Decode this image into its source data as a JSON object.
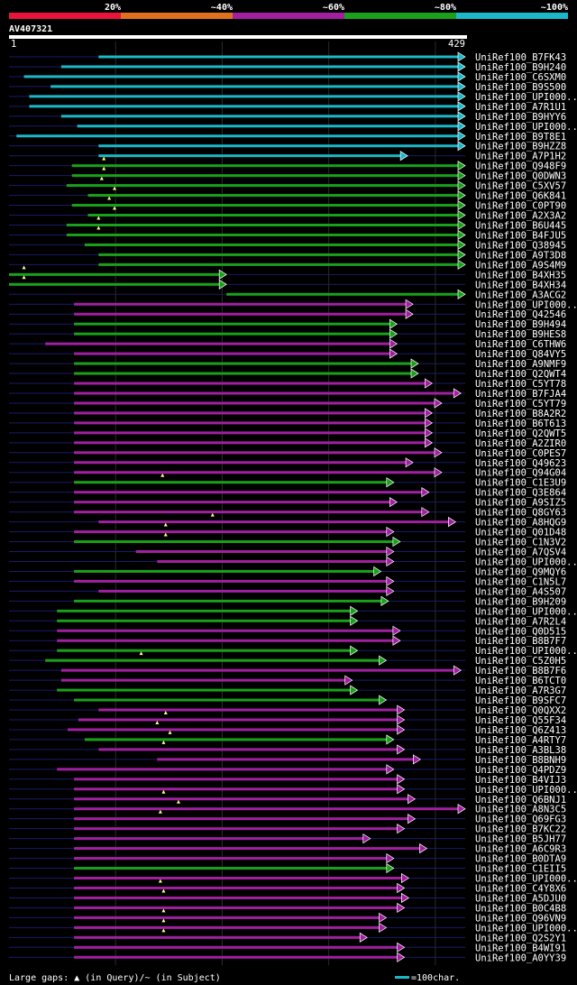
{
  "legend": {
    "bands": [
      {
        "label": "20%",
        "color": "#e8143c"
      },
      {
        "label": "~40%",
        "color": "#e0701e"
      },
      {
        "label": "~60%",
        "color": "#a020a0"
      },
      {
        "label": "~80%",
        "color": "#1aa01a"
      },
      {
        "label": "~100%",
        "color": "#1ab8c8"
      }
    ]
  },
  "query": {
    "name": "AV407321",
    "start_label": "1",
    "end_label": "429"
  },
  "footer": {
    "gap_text": "Large gaps: ▲ (in Query)/~ (in Subject)",
    "scale_text": "=100char."
  },
  "chart_data": {
    "type": "alignment",
    "query_length": 429,
    "identity_colors": {
      "~100%": "#1ab8c8",
      "~80%": "#1aa01a",
      "~60%": "#a020a0",
      "~40%": "#e0701e",
      "20%": "#e8143c"
    },
    "hits": [
      {
        "name": "UniRef100_B7FK43",
        "start": 85,
        "end": 429,
        "identity": "~100%",
        "qgap": null
      },
      {
        "name": "UniRef100_B9H240",
        "start": 50,
        "end": 429,
        "identity": "~100%",
        "qgap": null
      },
      {
        "name": "UniRef100_C6SXM0",
        "start": 15,
        "end": 429,
        "identity": "~100%",
        "qgap": null
      },
      {
        "name": "UniRef100_B9S500",
        "start": 40,
        "end": 429,
        "identity": "~100%",
        "qgap": null
      },
      {
        "name": "UniRef100_UPI000..",
        "start": 20,
        "end": 429,
        "identity": "~100%",
        "qgap": null
      },
      {
        "name": "UniRef100_A7R1U1",
        "start": 20,
        "end": 429,
        "identity": "~100%",
        "qgap": null
      },
      {
        "name": "UniRef100_B9HYY6",
        "start": 50,
        "end": 429,
        "identity": "~100%",
        "qgap": null
      },
      {
        "name": "UniRef100_UPI000..",
        "start": 65,
        "end": 429,
        "identity": "~100%",
        "qgap": null
      },
      {
        "name": "UniRef100_B9T8E1",
        "start": 8,
        "end": 429,
        "identity": "~100%",
        "qgap": null
      },
      {
        "name": "UniRef100_B9HZZ8",
        "start": 85,
        "end": 429,
        "identity": "~100%",
        "qgap": null
      },
      {
        "name": "UniRef100_A7P1H2",
        "start": 85,
        "end": 375,
        "identity": "~100%",
        "qgap": null
      },
      {
        "name": "UniRef100_Q948F9",
        "start": 60,
        "end": 429,
        "identity": "~80%",
        "qgap": 90
      },
      {
        "name": "UniRef100_Q0DWN3",
        "start": 60,
        "end": 429,
        "identity": "~80%",
        "qgap": 90
      },
      {
        "name": "UniRef100_C5XV57",
        "start": 55,
        "end": 429,
        "identity": "~80%",
        "qgap": 88
      },
      {
        "name": "UniRef100_Q6K841",
        "start": 75,
        "end": 429,
        "identity": "~80%",
        "qgap": 100
      },
      {
        "name": "UniRef100_C0PT90",
        "start": 60,
        "end": 429,
        "identity": "~80%",
        "qgap": 95
      },
      {
        "name": "UniRef100_A2X3A2",
        "start": 75,
        "end": 429,
        "identity": "~80%",
        "qgap": 100
      },
      {
        "name": "UniRef100_B6U445",
        "start": 55,
        "end": 429,
        "identity": "~80%",
        "qgap": 85
      },
      {
        "name": "UniRef100_B4FJU5",
        "start": 55,
        "end": 429,
        "identity": "~80%",
        "qgap": 85
      },
      {
        "name": "UniRef100_Q38945",
        "start": 72,
        "end": 429,
        "identity": "~80%",
        "qgap": null
      },
      {
        "name": "UniRef100_A9T3D8",
        "start": 85,
        "end": 429,
        "identity": "~80%",
        "qgap": null
      },
      {
        "name": "UniRef100_A9S4M9",
        "start": 85,
        "end": 429,
        "identity": "~80%",
        "qgap": null
      },
      {
        "name": "UniRef100_B4XH35",
        "start": 1,
        "end": 205,
        "identity": "~80%",
        "qgap": 15
      },
      {
        "name": "UniRef100_B4XH34",
        "start": 1,
        "end": 205,
        "identity": "~80%",
        "qgap": 15
      },
      {
        "name": "UniRef100_A3ACG2",
        "start": 205,
        "end": 429,
        "identity": "~80%",
        "qgap": null
      },
      {
        "name": "UniRef100_UPI000..",
        "start": 62,
        "end": 380,
        "identity": "~60%",
        "qgap": null
      },
      {
        "name": "UniRef100_Q42546",
        "start": 62,
        "end": 380,
        "identity": "~60%",
        "qgap": null
      },
      {
        "name": "UniRef100_B9H494",
        "start": 62,
        "end": 365,
        "identity": "~80%",
        "qgap": null
      },
      {
        "name": "UniRef100_B9HES8",
        "start": 62,
        "end": 365,
        "identity": "~80%",
        "qgap": null
      },
      {
        "name": "UniRef100_C6THW6",
        "start": 35,
        "end": 365,
        "identity": "~60%",
        "qgap": null
      },
      {
        "name": "UniRef100_Q84VY5",
        "start": 62,
        "end": 365,
        "identity": "~60%",
        "qgap": null
      },
      {
        "name": "UniRef100_A9NMF9",
        "start": 62,
        "end": 385,
        "identity": "~80%",
        "qgap": null
      },
      {
        "name": "UniRef100_Q2QWT4",
        "start": 62,
        "end": 385,
        "identity": "~80%",
        "qgap": null
      },
      {
        "name": "UniRef100_C5YT78",
        "start": 62,
        "end": 398,
        "identity": "~60%",
        "qgap": null
      },
      {
        "name": "UniRef100_B7FJA4",
        "start": 62,
        "end": 425,
        "identity": "~60%",
        "qgap": null
      },
      {
        "name": "UniRef100_C5YT79",
        "start": 62,
        "end": 407,
        "identity": "~60%",
        "qgap": null
      },
      {
        "name": "UniRef100_B8A2R2",
        "start": 62,
        "end": 398,
        "identity": "~60%",
        "qgap": null
      },
      {
        "name": "UniRef100_B6T613",
        "start": 62,
        "end": 398,
        "identity": "~60%",
        "qgap": null
      },
      {
        "name": "UniRef100_Q2QWT5",
        "start": 62,
        "end": 398,
        "identity": "~60%",
        "qgap": null
      },
      {
        "name": "UniRef100_A2ZIR0",
        "start": 62,
        "end": 398,
        "identity": "~60%",
        "qgap": null
      },
      {
        "name": "UniRef100_C0PES7",
        "start": 62,
        "end": 407,
        "identity": "~60%",
        "qgap": null
      },
      {
        "name": "UniRef100_Q49623",
        "start": 62,
        "end": 380,
        "identity": "~60%",
        "qgap": null
      },
      {
        "name": "UniRef100_Q94G04",
        "start": 62,
        "end": 407,
        "identity": "~60%",
        "qgap": null
      },
      {
        "name": "UniRef100_C1E3U9",
        "start": 62,
        "end": 362,
        "identity": "~80%",
        "qgap": 145
      },
      {
        "name": "UniRef100_Q3E864",
        "start": 62,
        "end": 395,
        "identity": "~60%",
        "qgap": null
      },
      {
        "name": "UniRef100_A9SIZ5",
        "start": 62,
        "end": 365,
        "identity": "~60%",
        "qgap": null
      },
      {
        "name": "UniRef100_Q8GY63",
        "start": 62,
        "end": 395,
        "identity": "~60%",
        "qgap": null
      },
      {
        "name": "UniRef100_A8HQG9",
        "start": 85,
        "end": 420,
        "identity": "~60%",
        "qgap": 192
      },
      {
        "name": "UniRef100_Q01D48",
        "start": 62,
        "end": 362,
        "identity": "~60%",
        "qgap": 148
      },
      {
        "name": "UniRef100_C1N3V2",
        "start": 62,
        "end": 368,
        "identity": "~80%",
        "qgap": 148
      },
      {
        "name": "UniRef100_A7QSV4",
        "start": 120,
        "end": 362,
        "identity": "~60%",
        "qgap": null
      },
      {
        "name": "UniRef100_UPI000..",
        "start": 140,
        "end": 362,
        "identity": "~60%",
        "qgap": null
      },
      {
        "name": "UniRef100_Q9MQY6",
        "start": 62,
        "end": 350,
        "identity": "~80%",
        "qgap": null
      },
      {
        "name": "UniRef100_C1N5L7",
        "start": 62,
        "end": 362,
        "identity": "~60%",
        "qgap": null
      },
      {
        "name": "UniRef100_A4S507",
        "start": 85,
        "end": 362,
        "identity": "~60%",
        "qgap": null
      },
      {
        "name": "UniRef100_B9H209",
        "start": 62,
        "end": 357,
        "identity": "~80%",
        "qgap": null
      },
      {
        "name": "UniRef100_UPI000..",
        "start": 46,
        "end": 328,
        "identity": "~80%",
        "qgap": null
      },
      {
        "name": "UniRef100_A7R2L4",
        "start": 46,
        "end": 328,
        "identity": "~80%",
        "qgap": null
      },
      {
        "name": "UniRef100_Q0D515",
        "start": 46,
        "end": 368,
        "identity": "~60%",
        "qgap": null
      },
      {
        "name": "UniRef100_B8B7F7",
        "start": 46,
        "end": 368,
        "identity": "~60%",
        "qgap": null
      },
      {
        "name": "UniRef100_UPI000..",
        "start": 46,
        "end": 328,
        "identity": "~80%",
        "qgap": null
      },
      {
        "name": "UniRef100_C5Z0H5",
        "start": 35,
        "end": 355,
        "identity": "~80%",
        "qgap": 125
      },
      {
        "name": "UniRef100_B8B7F6",
        "start": 50,
        "end": 425,
        "identity": "~60%",
        "qgap": null
      },
      {
        "name": "UniRef100_B6TCT0",
        "start": 50,
        "end": 323,
        "identity": "~60%",
        "qgap": null
      },
      {
        "name": "UniRef100_A7R3G7",
        "start": 46,
        "end": 328,
        "identity": "~80%",
        "qgap": null
      },
      {
        "name": "UniRef100_B9SFC7",
        "start": 62,
        "end": 355,
        "identity": "~80%",
        "qgap": null
      },
      {
        "name": "UniRef100_Q0QXX2",
        "start": 85,
        "end": 372,
        "identity": "~60%",
        "qgap": null
      },
      {
        "name": "UniRef100_Q55F34",
        "start": 66,
        "end": 372,
        "identity": "~60%",
        "qgap": 148
      },
      {
        "name": "UniRef100_Q6Z413",
        "start": 56,
        "end": 372,
        "identity": "~60%",
        "qgap": 140
      },
      {
        "name": "UniRef100_A4RTY7",
        "start": 72,
        "end": 362,
        "identity": "~80%",
        "qgap": 152
      },
      {
        "name": "UniRef100_A3BL38",
        "start": 85,
        "end": 372,
        "identity": "~60%",
        "qgap": 146
      },
      {
        "name": "UniRef100_B8BNH9",
        "start": 140,
        "end": 387,
        "identity": "~60%",
        "qgap": null
      },
      {
        "name": "UniRef100_Q4PDZ9",
        "start": 46,
        "end": 362,
        "identity": "~60%",
        "qgap": null
      },
      {
        "name": "UniRef100_B4VIJ3",
        "start": 62,
        "end": 372,
        "identity": "~60%",
        "qgap": null
      },
      {
        "name": "UniRef100_UPI000..",
        "start": 62,
        "end": 372,
        "identity": "~60%",
        "qgap": null
      },
      {
        "name": "UniRef100_Q6BNJ1",
        "start": 62,
        "end": 382,
        "identity": "~60%",
        "qgap": 146
      },
      {
        "name": "UniRef100_A8N3C5",
        "start": 62,
        "end": 429,
        "identity": "~60%",
        "qgap": 160
      },
      {
        "name": "UniRef100_Q69FG3",
        "start": 62,
        "end": 382,
        "identity": "~60%",
        "qgap": 143
      },
      {
        "name": "UniRef100_B7KC22",
        "start": 62,
        "end": 372,
        "identity": "~60%",
        "qgap": null
      },
      {
        "name": "UniRef100_B5JH77",
        "start": 62,
        "end": 340,
        "identity": "~60%",
        "qgap": null
      },
      {
        "name": "UniRef100_A6C9R3",
        "start": 62,
        "end": 393,
        "identity": "~60%",
        "qgap": null
      },
      {
        "name": "UniRef100_B0DTA9",
        "start": 62,
        "end": 362,
        "identity": "~60%",
        "qgap": null
      },
      {
        "name": "UniRef100_C1EII5",
        "start": 62,
        "end": 362,
        "identity": "~80%",
        "qgap": null
      },
      {
        "name": "UniRef100_UPI000..",
        "start": 62,
        "end": 376,
        "identity": "~60%",
        "qgap": null
      },
      {
        "name": "UniRef100_C4Y8X6",
        "start": 62,
        "end": 372,
        "identity": "~60%",
        "qgap": 143
      },
      {
        "name": "UniRef100_A5DJU0",
        "start": 62,
        "end": 376,
        "identity": "~60%",
        "qgap": 146
      },
      {
        "name": "UniRef100_B0C4B8",
        "start": 62,
        "end": 372,
        "identity": "~60%",
        "qgap": null
      },
      {
        "name": "UniRef100_Q96VN9",
        "start": 62,
        "end": 355,
        "identity": "~60%",
        "qgap": 146
      },
      {
        "name": "UniRef100_UPI000..",
        "start": 62,
        "end": 355,
        "identity": "~60%",
        "qgap": 146
      },
      {
        "name": "UniRef100_Q2S2Y1",
        "start": 62,
        "end": 337,
        "identity": "~60%",
        "qgap": 146
      },
      {
        "name": "UniRef100_B4WI91",
        "start": 62,
        "end": 372,
        "identity": "~60%",
        "qgap": null
      },
      {
        "name": "UniRef100_A0YY39",
        "start": 62,
        "end": 372,
        "identity": "~60%",
        "qgap": null
      }
    ]
  }
}
